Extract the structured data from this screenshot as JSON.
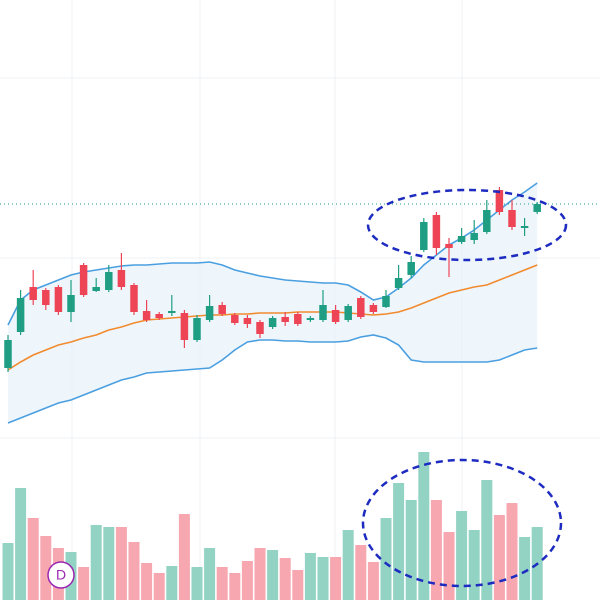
{
  "chart_data": {
    "type": "candlestick",
    "open": [
      232,
      268,
      313,
      310,
      313,
      288,
      335,
      309,
      310,
      330,
      315,
      289,
      286,
      287,
      287,
      260,
      280,
      295,
      285,
      282,
      278,
      273,
      283,
      286,
      280,
      280,
      290,
      280,
      302,
      295,
      293,
      312,
      325,
      350,
      385,
      356,
      358,
      360,
      368,
      410,
      390,
      372,
      388
    ],
    "high": [
      265,
      310,
      330,
      312,
      315,
      320,
      337,
      322,
      335,
      347,
      317,
      300,
      288,
      305,
      290,
      285,
      305,
      298,
      287,
      285,
      280,
      284,
      288,
      288,
      284,
      310,
      295,
      296,
      304,
      297,
      310,
      335,
      344,
      382,
      388,
      362,
      372,
      380,
      400,
      413,
      400,
      382,
      398
    ],
    "low": [
      228,
      265,
      295,
      290,
      285,
      278,
      303,
      308,
      308,
      310,
      285,
      278,
      280,
      284,
      252,
      258,
      278,
      284,
      275,
      272,
      262,
      271,
      274,
      274,
      278,
      278,
      276,
      278,
      281,
      286,
      292,
      310,
      322,
      348,
      345,
      323,
      356,
      356,
      366,
      385,
      370,
      364,
      386
    ],
    "close": [
      260,
      302,
      300,
      295,
      288,
      305,
      305,
      313,
      328,
      313,
      288,
      280,
      282,
      289,
      260,
      282,
      294,
      286,
      277,
      276,
      266,
      282,
      278,
      276,
      282,
      295,
      278,
      294,
      283,
      288,
      304,
      322,
      338,
      378,
      352,
      352,
      364,
      367,
      390,
      388,
      373,
      374,
      396
    ],
    "volume": [
      49,
      104,
      74,
      56,
      44,
      40,
      25,
      67,
      65,
      65,
      50,
      29,
      19,
      26,
      78,
      25,
      44,
      25,
      19,
      31,
      44,
      42,
      34,
      22,
      39,
      35,
      35,
      62,
      47,
      30,
      74,
      109,
      92,
      140,
      92,
      60,
      81,
      62,
      112,
      77,
      89,
      55,
      65
    ],
    "upper_band": [
      275,
      300,
      310,
      315,
      320,
      325,
      328,
      330,
      332,
      334,
      335,
      335,
      336,
      337,
      337,
      337,
      338,
      335,
      330,
      327,
      324,
      322,
      320,
      319,
      318,
      317,
      317,
      315,
      308,
      300,
      303,
      312,
      322,
      335,
      345,
      355,
      362,
      370,
      380,
      390,
      400,
      408,
      417
    ],
    "lower_band": [
      177,
      182,
      187,
      192,
      197,
      200,
      205,
      210,
      215,
      220,
      223,
      227,
      228,
      229,
      230,
      231,
      232,
      240,
      250,
      258,
      260,
      260,
      259,
      259,
      258,
      258,
      258,
      259,
      263,
      265,
      262,
      255,
      240,
      238,
      238,
      238,
      238,
      238,
      238,
      240,
      245,
      250,
      252
    ],
    "moving_average": [
      230,
      238,
      245,
      250,
      255,
      258,
      262,
      265,
      270,
      273,
      277,
      280,
      281,
      282,
      283,
      284,
      285,
      285,
      286,
      286,
      287,
      287,
      287,
      288,
      288,
      288,
      288,
      287,
      286,
      285,
      286,
      288,
      292,
      297,
      302,
      307,
      310,
      313,
      315,
      320,
      325,
      330,
      335
    ],
    "ylim": [
      0,
      600
    ],
    "y2lim": [
      0,
      600
    ],
    "up_color": "#1f9e84",
    "down_color": "#ee4556",
    "volume_up_color": "#93d3c4",
    "volume_down_color": "#f6a7b0",
    "band_color": "#4a9fe0",
    "band_fill": "#eaf4fb",
    "ma_color": "#f28a2e",
    "annotation": "D"
  }
}
